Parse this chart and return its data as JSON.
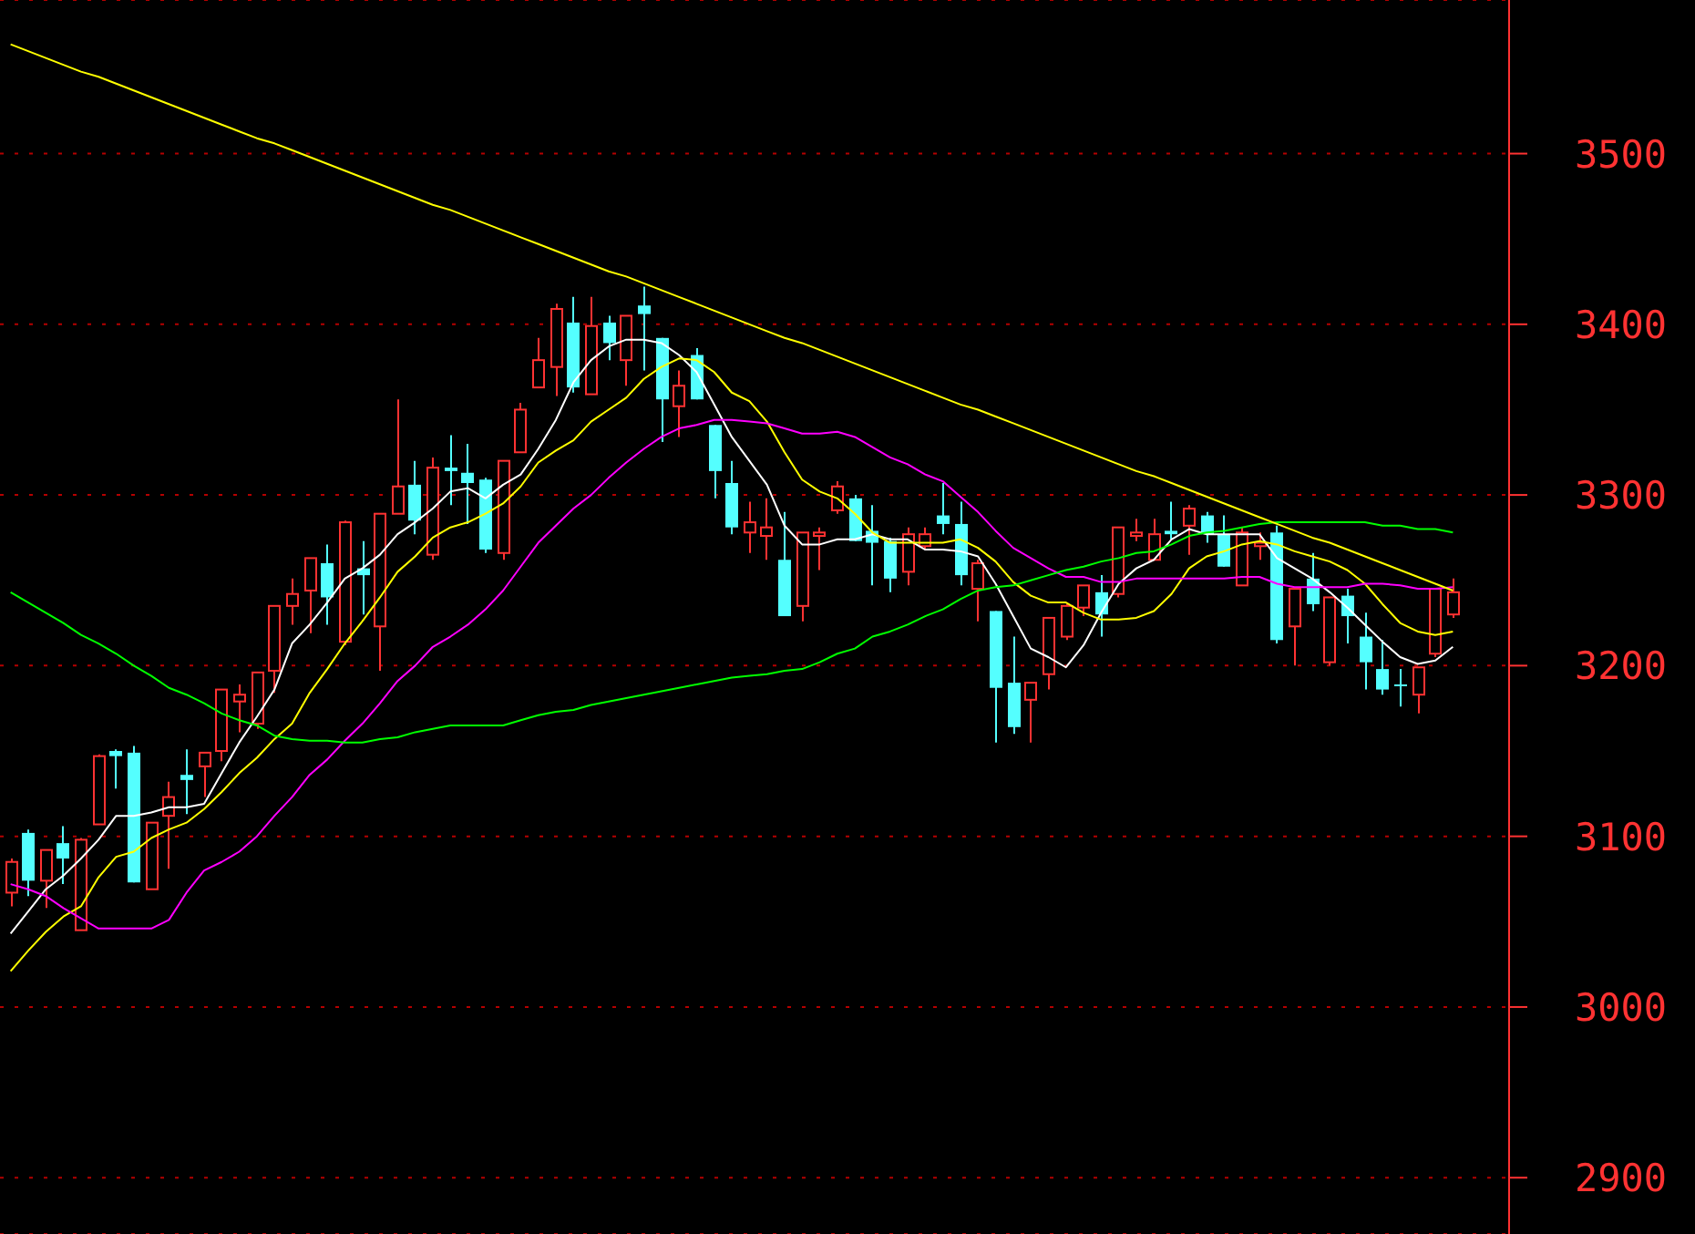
{
  "chart_data": {
    "type": "candlestick",
    "categories": [
      null,
      null,
      null,
      null,
      null,
      null,
      null,
      null,
      null,
      null,
      null,
      null,
      null,
      null,
      null,
      null,
      null,
      null,
      null,
      null,
      null,
      null,
      null,
      null,
      null,
      null,
      null,
      null,
      null,
      null,
      null,
      null,
      null,
      null,
      null,
      null,
      null,
      null,
      null,
      null,
      null,
      null,
      null,
      null,
      null,
      null,
      null,
      null,
      null,
      null,
      null,
      null,
      null,
      null,
      null,
      null,
      null,
      null,
      null,
      null,
      null,
      null,
      null,
      null,
      null,
      null,
      null,
      null,
      null,
      null,
      null,
      null,
      null,
      null,
      null,
      null,
      null,
      null,
      null,
      null,
      null,
      null,
      null
    ],
    "ohlc": [
      [
        3067,
        3087,
        3059,
        3085
      ],
      [
        3102,
        3104,
        3065,
        3074
      ],
      [
        3074,
        3092,
        3058,
        3092
      ],
      [
        3096,
        3106,
        3072,
        3087
      ],
      [
        3045,
        3099,
        3045,
        3098
      ],
      [
        3107,
        3148,
        3107,
        3147
      ],
      [
        3150,
        3151,
        3128,
        3147
      ],
      [
        3149,
        3153,
        3073,
        3073
      ],
      [
        3069,
        3108,
        3069,
        3108
      ],
      [
        3112,
        3132,
        3081,
        3123
      ],
      [
        3136,
        3151,
        3113,
        3133
      ],
      [
        3141,
        3149,
        3123,
        3149
      ],
      [
        3150,
        3186,
        3144,
        3186
      ],
      [
        3179,
        3189,
        3161,
        3183
      ],
      [
        3166,
        3196,
        3163,
        3196
      ],
      [
        3197,
        3235,
        3184,
        3235
      ],
      [
        3235,
        3251,
        3224,
        3242
      ],
      [
        3244,
        3263,
        3219,
        3263
      ],
      [
        3260,
        3271,
        3224,
        3240
      ],
      [
        3214,
        3285,
        3212,
        3284
      ],
      [
        3257,
        3273,
        3230,
        3253
      ],
      [
        3223,
        3289,
        3197,
        3289
      ],
      [
        3289,
        3356,
        3289,
        3305
      ],
      [
        3306,
        3320,
        3277,
        3285
      ],
      [
        3265,
        3322,
        3262,
        3316
      ],
      [
        3316,
        3335,
        3294,
        3314
      ],
      [
        3313,
        3330,
        3283,
        3307
      ],
      [
        3309,
        3310,
        3266,
        3268
      ],
      [
        3266,
        3320,
        3262,
        3320
      ],
      [
        3325,
        3354,
        3325,
        3350
      ],
      [
        3363,
        3392,
        3363,
        3379
      ],
      [
        3375,
        3412,
        3358,
        3409
      ],
      [
        3401,
        3416,
        3360,
        3363
      ],
      [
        3359,
        3416,
        3359,
        3399
      ],
      [
        3401,
        3405,
        3379,
        3389
      ],
      [
        3379,
        3405,
        3364,
        3405
      ],
      [
        3411,
        3422,
        3373,
        3406
      ],
      [
        3392,
        3392,
        3331,
        3356
      ],
      [
        3352,
        3373,
        3334,
        3364
      ],
      [
        3382,
        3386,
        3356,
        3356
      ],
      [
        3341,
        3341,
        3298,
        3314
      ],
      [
        3307,
        3320,
        3277,
        3281
      ],
      [
        3278,
        3296,
        3266,
        3284
      ],
      [
        3276,
        3298,
        3262,
        3281
      ],
      [
        3262,
        3290,
        3229,
        3229
      ],
      [
        3235,
        3278,
        3226,
        3278
      ],
      [
        3276,
        3281,
        3256,
        3278
      ],
      [
        3291,
        3308,
        3289,
        3305
      ],
      [
        3298,
        3300,
        3273,
        3273
      ],
      [
        3279,
        3294,
        3247,
        3272
      ],
      [
        3273,
        3275,
        3243,
        3251
      ],
      [
        3255,
        3281,
        3247,
        3277
      ],
      [
        3270,
        3281,
        3268,
        3277
      ],
      [
        3288,
        3307,
        3277,
        3283
      ],
      [
        3283,
        3296,
        3247,
        3253
      ],
      [
        3245,
        3262,
        3226,
        3260
      ],
      [
        3232,
        3232,
        3155,
        3187
      ],
      [
        3190,
        3217,
        3160,
        3164
      ],
      [
        3180,
        3190,
        3155,
        3190
      ],
      [
        3195,
        3228,
        3186,
        3228
      ],
      [
        3217,
        3236,
        3215,
        3235
      ],
      [
        3234,
        3247,
        3229,
        3247
      ],
      [
        3243,
        3253,
        3217,
        3230
      ],
      [
        3242,
        3281,
        3240,
        3281
      ],
      [
        3276,
        3286,
        3273,
        3278
      ],
      [
        3262,
        3286,
        3262,
        3277
      ],
      [
        3279,
        3296,
        3274,
        3277
      ],
      [
        3282,
        3294,
        3265,
        3292
      ],
      [
        3288,
        3290,
        3272,
        3277
      ],
      [
        3277,
        3288,
        3258,
        3258
      ],
      [
        3247,
        3281,
        3247,
        3278
      ],
      [
        3270,
        3278,
        3262,
        3272
      ],
      [
        3278,
        3282,
        3213,
        3215
      ],
      [
        3223,
        3245,
        3200,
        3245
      ],
      [
        3251,
        3266,
        3232,
        3236
      ],
      [
        3202,
        3240,
        3200,
        3240
      ],
      [
        3241,
        3245,
        3213,
        3229
      ],
      [
        3217,
        3231,
        3186,
        3202
      ],
      [
        3198,
        3215,
        3183,
        3186
      ],
      [
        3189,
        3198,
        3176,
        3188
      ],
      [
        3183,
        3199,
        3172,
        3199
      ],
      [
        3207,
        3245,
        3205,
        3245
      ],
      [
        3230,
        3251,
        3228,
        3243
      ]
    ],
    "colors": [
      "#ff3232",
      "#54ffff",
      "#ff3232",
      "#54ffff",
      "#ff3232",
      "#ff3232",
      "#54ffff",
      "#54ffff",
      "#ff3232",
      "#ff3232",
      "#54ffff",
      "#ff3232",
      "#ff3232",
      "#ff3232",
      "#ff3232",
      "#ff3232",
      "#ff3232",
      "#ff3232",
      "#54ffff",
      "#ff3232",
      "#54ffff",
      "#ff3232",
      "#ff3232",
      "#54ffff",
      "#ff3232",
      "#54ffff",
      "#54ffff",
      "#54ffff",
      "#ff3232",
      "#ff3232",
      "#ff3232",
      "#ff3232",
      "#54ffff",
      "#ff3232",
      "#54ffff",
      "#ff3232",
      "#54ffff",
      "#54ffff",
      "#ff3232",
      "#54ffff",
      "#54ffff",
      "#54ffff",
      "#ff3232",
      "#ff3232",
      "#54ffff",
      "#ff3232",
      "#ff3232",
      "#ff3232",
      "#54ffff",
      "#54ffff",
      "#54ffff",
      "#ff3232",
      "#ff3232",
      "#54ffff",
      "#54ffff",
      "#ff3232",
      "#54ffff",
      "#54ffff",
      "#ff3232",
      "#ff3232",
      "#ff3232",
      "#ff3232",
      "#54ffff",
      "#ff3232",
      "#ff3232",
      "#ff3232",
      "#54ffff",
      "#ff3232",
      "#54ffff",
      "#54ffff",
      "#ff3232",
      "#ff3232",
      "#54ffff",
      "#ff3232",
      "#54ffff",
      "#ff3232",
      "#54ffff",
      "#54ffff",
      "#54ffff",
      "#54ffff",
      "#ff3232",
      "#ff3232",
      "#ff3232"
    ],
    "series": [
      {
        "type": "line",
        "color": "#ffffff",
        "values": [
          3043,
          3056,
          3069,
          3077,
          3087,
          3098,
          3112,
          3112,
          3114,
          3117,
          3117,
          3119,
          3137,
          3155,
          3170,
          3186,
          3213,
          3224,
          3237,
          3251,
          3257,
          3265,
          3277,
          3284,
          3292,
          3302,
          3304,
          3298,
          3306,
          3312,
          3327,
          3344,
          3366,
          3379,
          3387,
          3391,
          3391,
          3389,
          3382,
          3372,
          3353,
          3334,
          3320,
          3306,
          3282,
          3271,
          3271,
          3274,
          3274,
          3277,
          3274,
          3274,
          3268,
          3268,
          3267,
          3264,
          3248,
          3229,
          3210,
          3205,
          3199,
          3212,
          3231,
          3248,
          3257,
          3262,
          3274,
          3280,
          3277,
          3277,
          3277,
          3277,
          3263,
          3257,
          3251,
          3243,
          3234,
          3224,
          3214,
          3205,
          3201,
          3203,
          3211
        ]
      },
      {
        "type": "line",
        "color": "#ffff00",
        "values": [
          3021,
          3033,
          3044,
          3053,
          3059,
          3076,
          3088,
          3091,
          3099,
          3104,
          3108,
          3116,
          3126,
          3137,
          3146,
          3157,
          3166,
          3184,
          3198,
          3213,
          3226,
          3240,
          3255,
          3264,
          3275,
          3281,
          3284,
          3289,
          3295,
          3305,
          3319,
          3326,
          3332,
          3343,
          3350,
          3357,
          3368,
          3375,
          3380,
          3379,
          3372,
          3360,
          3355,
          3343,
          3325,
          3309,
          3302,
          3298,
          3289,
          3278,
          3272,
          3272,
          3272,
          3272,
          3274,
          3269,
          3261,
          3249,
          3241,
          3237,
          3237,
          3231,
          3227,
          3227,
          3228,
          3232,
          3242,
          3257,
          3264,
          3267,
          3271,
          3273,
          3271,
          3267,
          3264,
          3261,
          3256,
          3248,
          3236,
          3225,
          3220,
          3218,
          3220
        ]
      },
      {
        "type": "line",
        "color": "#ff00ff",
        "values": [
          3072,
          3069,
          3065,
          3058,
          3052,
          3046,
          3046,
          3046,
          3046,
          3051,
          3067,
          3080,
          3085,
          3091,
          3100,
          3112,
          3123,
          3136,
          3145,
          3156,
          3166,
          3178,
          3191,
          3200,
          3211,
          3217,
          3224,
          3233,
          3244,
          3258,
          3272,
          3282,
          3292,
          3300,
          3310,
          3319,
          3327,
          3334,
          3339,
          3341,
          3344,
          3344,
          3343,
          3342,
          3339,
          3336,
          3336,
          3337,
          3334,
          3328,
          3322,
          3318,
          3312,
          3308,
          3299,
          3290,
          3279,
          3269,
          3263,
          3257,
          3252,
          3252,
          3249,
          3249,
          3251,
          3251,
          3251,
          3251,
          3251,
          3251,
          3252,
          3252,
          3248,
          3246,
          3246,
          3246,
          3246,
          3248,
          3248,
          3247,
          3245,
          3245,
          3246
        ]
      },
      {
        "type": "line",
        "color": "#00ff00",
        "values": [
          3243,
          3237,
          3231,
          3225,
          3218,
          3213,
          3207,
          3200,
          3194,
          3187,
          3183,
          3178,
          3172,
          3168,
          3165,
          3159,
          3157,
          3156,
          3156,
          3155,
          3155,
          3157,
          3158,
          3161,
          3163,
          3165,
          3165,
          3165,
          3165,
          3168,
          3171,
          3173,
          3174,
          3177,
          3179,
          3181,
          3183,
          3185,
          3187,
          3189,
          3191,
          3193,
          3194,
          3195,
          3197,
          3198,
          3202,
          3207,
          3210,
          3217,
          3220,
          3224,
          3229,
          3233,
          3239,
          3244,
          3246,
          3247,
          3250,
          3253,
          3256,
          3258,
          3261,
          3263,
          3266,
          3267,
          3271,
          3276,
          3278,
          3279,
          3281,
          3283,
          3284,
          3284,
          3284,
          3284,
          3284,
          3284,
          3282,
          3282,
          3280,
          3280,
          3278
        ]
      },
      {
        "type": "line",
        "color": "#ffff00",
        "values": [
          3564,
          3560,
          3556,
          3552,
          3548,
          3545,
          3541,
          3537,
          3533,
          3529,
          3525,
          3521,
          3517,
          3513,
          3509,
          3506,
          3502,
          3498,
          3494,
          3490,
          3486,
          3482,
          3478,
          3474,
          3470,
          3467,
          3463,
          3459,
          3455,
          3451,
          3447,
          3443,
          3439,
          3435,
          3431,
          3428,
          3424,
          3420,
          3416,
          3412,
          3408,
          3404,
          3400,
          3396,
          3392,
          3389,
          3385,
          3381,
          3377,
          3373,
          3369,
          3365,
          3361,
          3357,
          3353,
          3350,
          3346,
          3342,
          3338,
          3334,
          3330,
          3326,
          3322,
          3318,
          3314,
          3311,
          3307,
          3303,
          3299,
          3295,
          3291,
          3287,
          3283,
          3279,
          3275,
          3272,
          3268,
          3264,
          3260,
          3256,
          3252,
          3248,
          3244
        ]
      }
    ],
    "ylim": [
      2867,
      3590
    ],
    "yticks": [
      2900,
      3000,
      3100,
      3200,
      3300,
      3400,
      3500
    ],
    "grid": "y",
    "tick_labels": "y"
  }
}
